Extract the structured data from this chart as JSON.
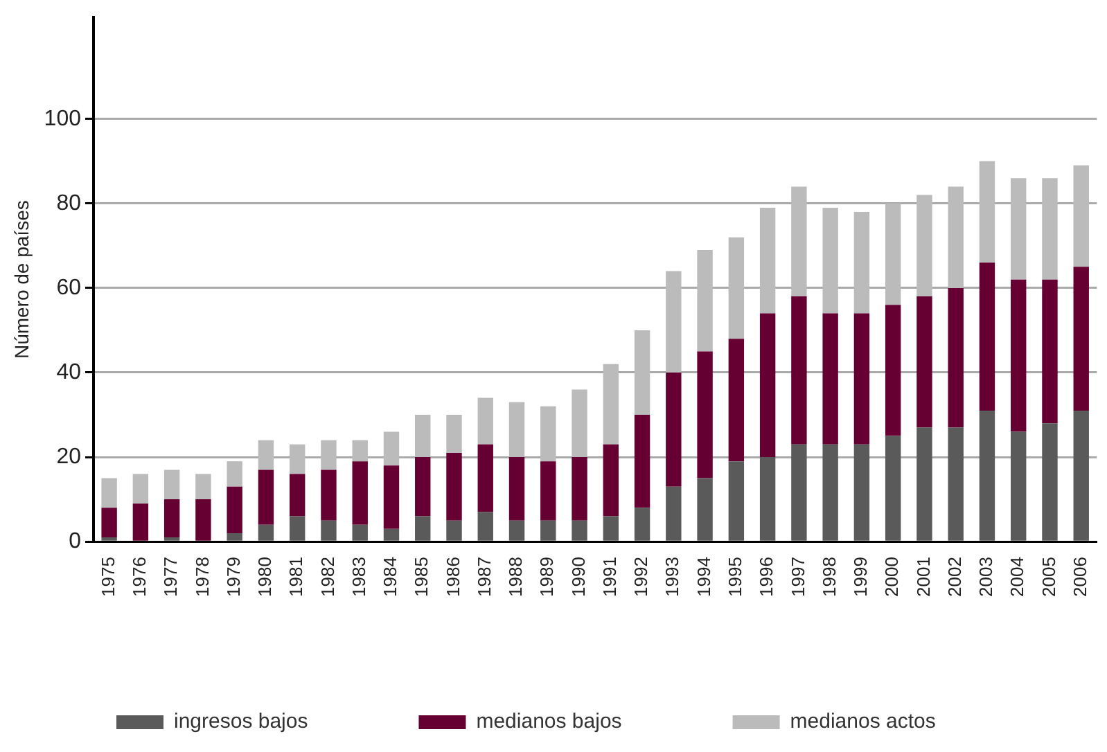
{
  "chart_data": {
    "type": "bar",
    "stacked": true,
    "ylabel": "Número de países",
    "categories": [
      "1975",
      "1976",
      "1977",
      "1978",
      "1979",
      "1980",
      "1981",
      "1982",
      "1983",
      "1984",
      "1985",
      "1986",
      "1987",
      "1988",
      "1989",
      "1990",
      "1991",
      "1992",
      "1993",
      "1994",
      "1995",
      "1996",
      "1997",
      "1998",
      "1999",
      "2000",
      "2001",
      "2002",
      "2003",
      "2004",
      "2005",
      "2006"
    ],
    "series": [
      {
        "name": "ingresos bajos",
        "color": "#5a5a5a",
        "values": [
          1,
          0,
          1,
          0,
          2,
          4,
          6,
          5,
          4,
          3,
          6,
          5,
          7,
          5,
          5,
          5,
          6,
          8,
          13,
          15,
          19,
          20,
          23,
          23,
          23,
          25,
          27,
          27,
          31,
          26,
          28,
          31
        ]
      },
      {
        "name": "medianos bajos",
        "color": "#660033",
        "values": [
          7,
          9,
          9,
          10,
          11,
          13,
          10,
          12,
          15,
          15,
          14,
          16,
          16,
          15,
          14,
          15,
          17,
          22,
          27,
          30,
          29,
          34,
          35,
          31,
          31,
          31,
          31,
          33,
          35,
          36,
          34,
          34
        ]
      },
      {
        "name": "medianos actos",
        "color": "#bbbbbb",
        "values": [
          7,
          7,
          7,
          6,
          6,
          7,
          7,
          7,
          5,
          8,
          10,
          9,
          11,
          13,
          13,
          16,
          19,
          20,
          24,
          24,
          24,
          25,
          26,
          25,
          24,
          24,
          24,
          24,
          24,
          24,
          24,
          24
        ]
      }
    ],
    "ylim": [
      0,
      124
    ],
    "yticks": [
      0,
      20,
      40,
      60,
      80,
      100
    ],
    "grid": "y",
    "legend": "bottom"
  }
}
